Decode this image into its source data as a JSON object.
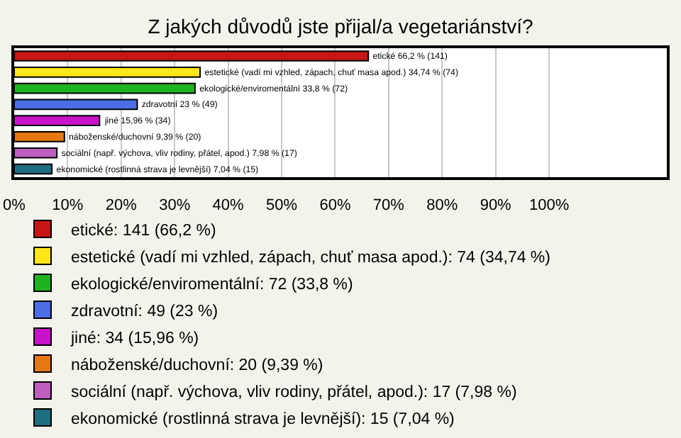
{
  "chart_data": {
    "type": "bar",
    "orientation": "horizontal",
    "title": "Z jakých důvodů jste přijal/a vegetariánství?",
    "categories": [
      null,
      null,
      null,
      null,
      null,
      null,
      null,
      null
    ],
    "series": [
      {
        "name": "etické: 141 (66,2 %)",
        "color": "#c81414",
        "values": [
          66.2,
          null,
          null,
          null,
          null,
          null,
          null,
          null
        ],
        "value_labels": [
          "etické 66,2 % (141)",
          null,
          null,
          null,
          null,
          null,
          null,
          null
        ]
      },
      {
        "name": "estetické (vadí mi vzhled, zápach, chuť masa apod.): 74 (34,74 %)",
        "color": "#ffe619",
        "values": [
          null,
          34.74,
          null,
          null,
          null,
          null,
          null,
          null
        ],
        "value_labels": [
          null,
          "estetické (vadí mi vzhled, zápach, chuť masa apod.) 34,74 % (74)",
          null,
          null,
          null,
          null,
          null,
          null
        ]
      },
      {
        "name": "ekologické/enviromentální: 72 (33,8 %)",
        "color": "#1fb41f",
        "values": [
          null,
          null,
          33.8,
          null,
          null,
          null,
          null,
          null
        ],
        "value_labels": [
          null,
          null,
          "ekologické/enviromentální 33,8 % (72)",
          null,
          null,
          null,
          null,
          null
        ]
      },
      {
        "name": "zdravotní: 49 (23 %)",
        "color": "#4a6ee6",
        "values": [
          null,
          null,
          null,
          23,
          null,
          null,
          null,
          null
        ],
        "value_labels": [
          null,
          null,
          null,
          "zdravotní 23 % (49)",
          null,
          null,
          null,
          null
        ]
      },
      {
        "name": "jiné: 34 (15,96 %)",
        "color": "#c814c8",
        "values": [
          null,
          null,
          null,
          null,
          15.96,
          null,
          null,
          null
        ],
        "value_labels": [
          null,
          null,
          null,
          null,
          "jiné 15,96 % (34)",
          null,
          null,
          null
        ]
      },
      {
        "name": "náboženské/duchovní: 20 (9,39 %)",
        "color": "#e67814",
        "values": [
          null,
          null,
          null,
          null,
          null,
          9.39,
          null,
          null
        ],
        "value_labels": [
          null,
          null,
          null,
          null,
          null,
          "náboženské/duchovní 9,39 % (20)",
          null,
          null
        ]
      },
      {
        "name": "sociální (např. výchova, vliv rodiny, přátel, apod.): 17 (7,98 %)",
        "color": "#c05ec0",
        "values": [
          null,
          null,
          null,
          null,
          null,
          null,
          7.98,
          null
        ],
        "value_labels": [
          null,
          null,
          null,
          null,
          null,
          null,
          "sociální (např. výchova, vliv rodiny, přátel, apod.) 7,98 % (17)",
          null
        ]
      },
      {
        "name": "ekonomické (rostlinná strava je levnější): 15 (7,04 %)",
        "color": "#1e6e82",
        "values": [
          null,
          null,
          null,
          null,
          null,
          null,
          null,
          7.04
        ],
        "value_labels": [
          null,
          null,
          null,
          null,
          null,
          null,
          null,
          "ekonomické (rostlinná strava je levnější) 7,04 % (15)"
        ]
      }
    ],
    "xlim": [
      0,
      122
    ],
    "xticks": [
      {
        "value": 0,
        "label": "0%"
      },
      {
        "value": 10,
        "label": "10%"
      },
      {
        "value": 20,
        "label": "20%"
      },
      {
        "value": 30,
        "label": "30%"
      },
      {
        "value": 40,
        "label": "40%"
      },
      {
        "value": 50,
        "label": "50%"
      },
      {
        "value": 60,
        "label": "60%"
      },
      {
        "value": 70,
        "label": "70%"
      },
      {
        "value": 80,
        "label": "80%"
      },
      {
        "value": 90,
        "label": "90%"
      },
      {
        "value": 100,
        "label": "100%"
      }
    ],
    "grid": "x",
    "legend": "bottom",
    "tick_labels": "x"
  }
}
